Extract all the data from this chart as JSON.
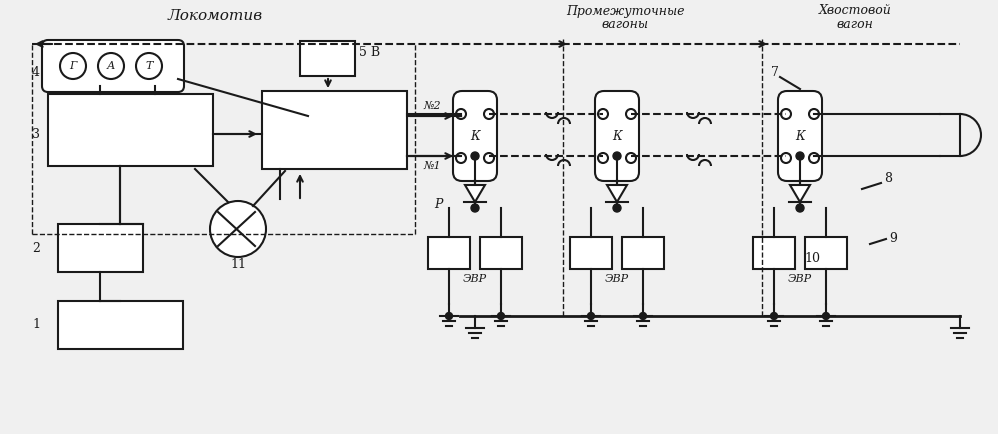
{
  "title_locomotive": "Локомотив",
  "title_intermediate_1": "Промежуточные",
  "title_intermediate_2": "вагоны",
  "title_tail_1": "Хвостовой",
  "title_tail_2": "вагон",
  "bg_color": "#f0f0f0",
  "line_color": "#1a1a1a",
  "figsize": [
    9.98,
    4.34
  ],
  "dpi": 100
}
